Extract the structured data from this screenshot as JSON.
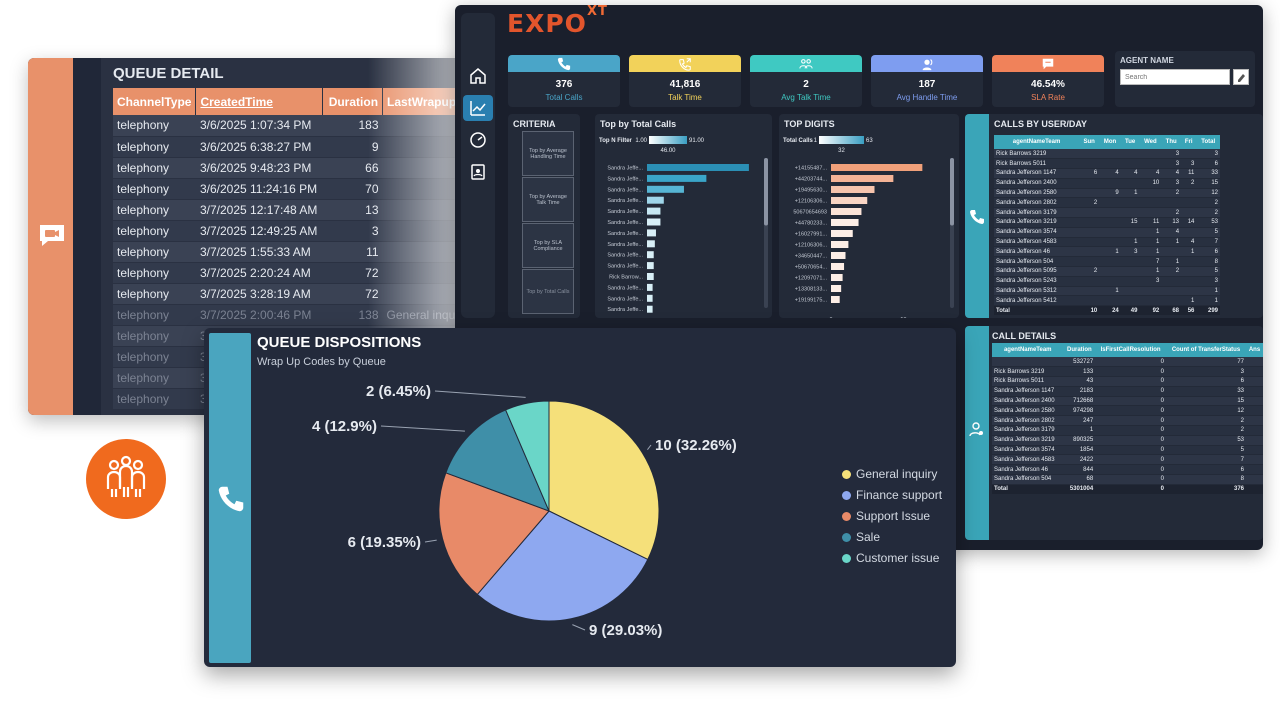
{
  "queue_detail": {
    "title": "QUEUE DETAIL",
    "columns": [
      "ChannelType",
      "CreatedTime",
      "Duration",
      "LastWrapupCode"
    ],
    "rows": [
      [
        "telephony",
        "3/6/2025 1:07:34 PM",
        "183",
        ""
      ],
      [
        "telephony",
        "3/6/2025 6:38:27 PM",
        "9",
        ""
      ],
      [
        "telephony",
        "3/6/2025 9:48:23 PM",
        "66",
        ""
      ],
      [
        "telephony",
        "3/6/2025 11:24:16 PM",
        "70",
        ""
      ],
      [
        "telephony",
        "3/7/2025 12:17:48 AM",
        "13",
        ""
      ],
      [
        "telephony",
        "3/7/2025 12:49:25 AM",
        "3",
        ""
      ],
      [
        "telephony",
        "3/7/2025 1:55:33 AM",
        "11",
        ""
      ],
      [
        "telephony",
        "3/7/2025 2:20:24 AM",
        "72",
        ""
      ],
      [
        "telephony",
        "3/7/2025 3:28:19 AM",
        "72",
        ""
      ],
      [
        "telephony",
        "3/7/2025 2:00:46 PM",
        "138",
        "General inquiry"
      ],
      [
        "telephony",
        "3/7/",
        "",
        ""
      ],
      [
        "telephony",
        "3/7/20",
        "",
        ""
      ],
      [
        "telephony",
        "3/7/20",
        "",
        ""
      ],
      [
        "telephony",
        "3/7/20",
        "",
        ""
      ]
    ]
  },
  "dashboard": {
    "logo": {
      "main": "EXPO",
      "sup": "XT"
    },
    "kpis": [
      {
        "value": "376",
        "label": "Total Calls",
        "color": "#4aa5c8",
        "icon": "phone-icon"
      },
      {
        "value": "41,816",
        "label": "Talk Time",
        "color": "#f2d25a",
        "icon": "phone-outgoing-icon"
      },
      {
        "value": "2",
        "label": "Avg Talk Time",
        "color": "#3fc9c2",
        "icon": "group-icon"
      },
      {
        "value": "187",
        "label": "Avg Handle Time",
        "color": "#7e9df0",
        "icon": "headset-icon"
      },
      {
        "value": "46.54%",
        "label": "SLA Rate",
        "color": "#f0825a",
        "icon": "chat-icon"
      }
    ],
    "agent": {
      "title": "AGENT NAME",
      "placeholder": "Search"
    },
    "criteria": {
      "title": "CRITERIA",
      "buttons": [
        "Top by Average Handling Time",
        "Top by Average Talk Time",
        "Top by SLA Compliance",
        "Top by Total Calls"
      ]
    },
    "top_calls": {
      "title": "Top by Total Calls",
      "filter_label": "Top N Filter",
      "filter_min": "1.00",
      "filter_max": "91.00",
      "filter_val": "46.00",
      "names": [
        "Sandra Jeffe...",
        "Sandra Jeffe...",
        "Sandra Jeffe...",
        "Sandra Jeffe...",
        "Sandra Jeffe...",
        "Sandra Jeffe...",
        "Sandra Jeffe...",
        "Sandra Jeffe...",
        "Sandra Jeffe...",
        "Sandra Jeffe...",
        "Rick Barrow...",
        "Sandra Jeffe...",
        "Sandra Jeffe...",
        "Sandra Jeffe..."
      ],
      "values": [
        91,
        53,
        33,
        15,
        12,
        12,
        8,
        7,
        6,
        6,
        6,
        5,
        5,
        5
      ],
      "ticks": [
        "0",
        "50",
        "100"
      ]
    },
    "top_digits": {
      "title": "TOP DIGITS",
      "filter_label": "Total Calls",
      "filter_min": "1",
      "filter_max": "63",
      "filter_val": "32",
      "names": [
        "+14155487...",
        "+44203744...",
        "+19495630...",
        "+12106306...",
        "50670654693",
        "+44780233...",
        "+16027991...",
        "+12106306...",
        "+34650447...",
        "+50670654...",
        "+12097071...",
        "+13308133...",
        "+19199175..."
      ],
      "values": [
        63,
        43,
        30,
        25,
        21,
        19,
        15,
        12,
        10,
        9,
        8,
        7,
        6
      ],
      "ticks": [
        "0",
        "50"
      ]
    },
    "calls_by_user": {
      "title": "CALLS BY USER/DAY",
      "columns": [
        "agentNameTeam",
        "Sun",
        "Mon",
        "Tue",
        "Wed",
        "Thu",
        "Fri",
        "Total"
      ],
      "rows": [
        [
          "Rick Barrows 3219",
          "",
          "",
          "",
          "",
          "3",
          "",
          "3"
        ],
        [
          "Rick Barrows 5011",
          "",
          "",
          "",
          "",
          "3",
          "3",
          "6"
        ],
        [
          "Sandra Jefferson 1147",
          "6",
          "4",
          "4",
          "4",
          "4",
          "11",
          "33"
        ],
        [
          "Sandra Jefferson 2400",
          "",
          "",
          "",
          "10",
          "3",
          "2",
          "15"
        ],
        [
          "Sandra Jefferson 2580",
          "",
          "9",
          "1",
          "",
          "2",
          "",
          "12"
        ],
        [
          "Sandra Jefferson 2802",
          "2",
          "",
          "",
          "",
          "",
          "",
          "2"
        ],
        [
          "Sandra Jefferson 3179",
          "",
          "",
          "",
          "",
          "2",
          "",
          "2"
        ],
        [
          "Sandra Jefferson 3219",
          "",
          "",
          "15",
          "11",
          "13",
          "14",
          "53"
        ],
        [
          "Sandra Jefferson 3574",
          "",
          "",
          "",
          "1",
          "4",
          "",
          "5"
        ],
        [
          "Sandra Jefferson 4583",
          "",
          "",
          "1",
          "1",
          "1",
          "4",
          "7"
        ],
        [
          "Sandra Jefferson 46",
          "",
          "1",
          "3",
          "1",
          "",
          "1",
          "6"
        ],
        [
          "Sandra Jefferson 504",
          "",
          "",
          "",
          "7",
          "1",
          "",
          "8"
        ],
        [
          "Sandra Jefferson 5095",
          "2",
          "",
          "",
          "1",
          "2",
          "",
          "5"
        ],
        [
          "Sandra Jefferson 5243",
          "",
          "",
          "",
          "3",
          "",
          "",
          "3"
        ],
        [
          "Sandra Jefferson 5312",
          "",
          "1",
          "",
          "",
          "",
          "",
          "1"
        ],
        [
          "Sandra Jefferson 5412",
          "",
          "",
          "",
          "",
          "",
          "1",
          "1"
        ]
      ],
      "total": [
        "Total",
        "10",
        "24",
        "49",
        "92",
        "68",
        "56",
        "299"
      ]
    },
    "call_details": {
      "title": "CALL DETAILS",
      "columns": [
        "agentNameTeam",
        "Duration",
        "IsFirstCallResolution",
        "Count of TransferStatus",
        "Ans"
      ],
      "rows": [
        [
          "",
          "532727",
          "0",
          "77"
        ],
        [
          "Rick Barrows 3219",
          "133",
          "0",
          "3"
        ],
        [
          "Rick Barrows 5011",
          "43",
          "0",
          "6"
        ],
        [
          "Sandra Jefferson 1147",
          "2183",
          "0",
          "33"
        ],
        [
          "Sandra Jefferson 2400",
          "712668",
          "0",
          "15"
        ],
        [
          "Sandra Jefferson 2580",
          "974298",
          "0",
          "12"
        ],
        [
          "Sandra Jefferson 2802",
          "247",
          "0",
          "2"
        ],
        [
          "Sandra Jefferson 3179",
          "1",
          "0",
          "2"
        ],
        [
          "Sandra Jefferson 3219",
          "890325",
          "0",
          "53"
        ],
        [
          "Sandra Jefferson 3574",
          "1854",
          "0",
          "5"
        ],
        [
          "Sandra Jefferson 4583",
          "2422",
          "0",
          "7"
        ],
        [
          "Sandra Jefferson 46",
          "844",
          "0",
          "6"
        ],
        [
          "Sandra Jefferson 504",
          "68",
          "0",
          "8"
        ]
      ],
      "total": [
        "Total",
        "5301004",
        "0",
        "376"
      ]
    }
  },
  "dispositions": {
    "title": "QUEUE DISPOSITIONS",
    "subtitle": "Wrap Up Codes by Queue",
    "legend": [
      "General inquiry",
      "Finance support",
      "Support Issue",
      "Sale",
      "Customer issue"
    ],
    "colors": [
      "#f5e07a",
      "#8ea8f0",
      "#e88a68",
      "#3f8fa8",
      "#6ad6c8"
    ]
  },
  "chart_data": {
    "type": "pie",
    "title": "QUEUE DISPOSITIONS",
    "subtitle": "Wrap Up Codes by Queue",
    "categories": [
      "General inquiry",
      "Finance support",
      "Support Issue",
      "Sale",
      "Customer issue"
    ],
    "values": [
      10,
      9,
      6,
      4,
      2
    ],
    "labels": [
      "10 (32.26%)",
      "9 (29.03%)",
      "6 (19.35%)",
      "4 (12.9%)",
      "2 (6.45%)"
    ],
    "legend": "right"
  }
}
